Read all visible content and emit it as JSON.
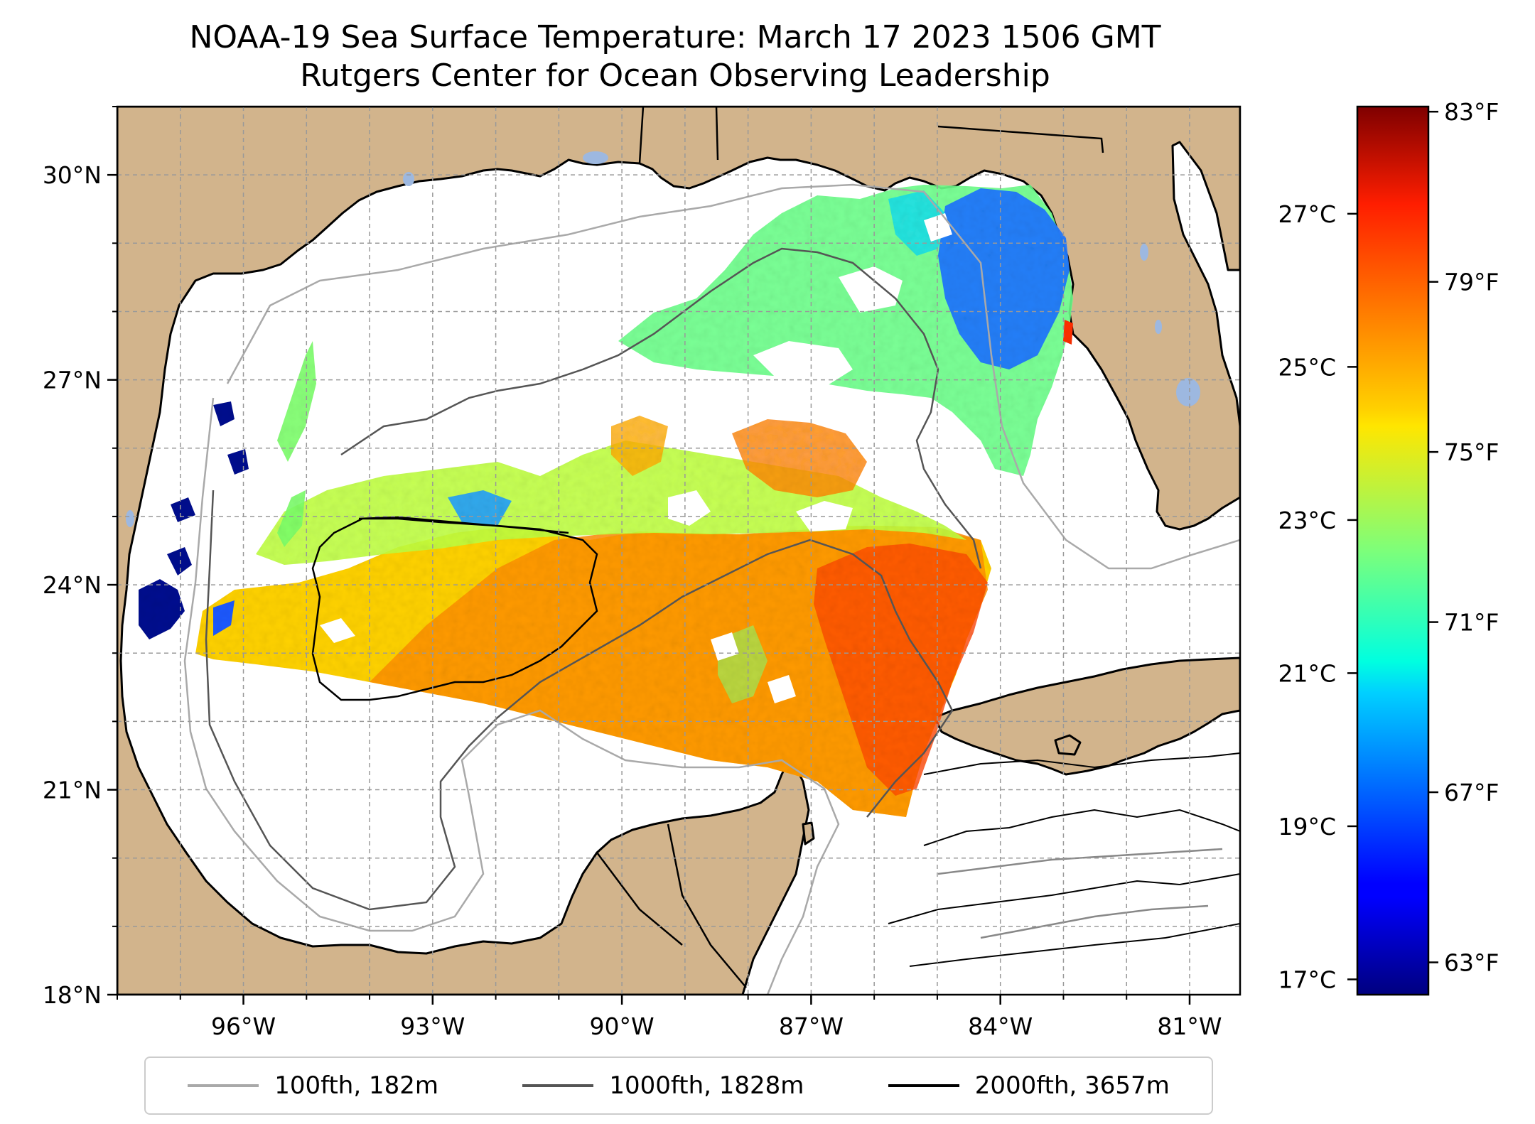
{
  "title_line1": "NOAA-19 Sea Surface Temperature: March 17 2023 1506 GMT",
  "title_line2": "Rutgers Center for Ocean Observing Leadership",
  "map": {
    "lon_range": [
      -98,
      -80.2
    ],
    "lat_range": [
      18,
      31
    ],
    "lon_ticks": [
      {
        "value": -96,
        "label": "96°W"
      },
      {
        "value": -93,
        "label": "93°W"
      },
      {
        "value": -90,
        "label": "90°W"
      },
      {
        "value": -87,
        "label": "87°W"
      },
      {
        "value": -84,
        "label": "84°W"
      },
      {
        "value": -81,
        "label": "81°W"
      }
    ],
    "lat_ticks": [
      {
        "value": 18,
        "label": "18°N"
      },
      {
        "value": 21,
        "label": "21°N"
      },
      {
        "value": 24,
        "label": "24°N"
      },
      {
        "value": 27,
        "label": "27°N"
      },
      {
        "value": 30,
        "label": "30°N"
      }
    ],
    "gridlines": true,
    "colors": {
      "land": "#d2b48c",
      "ocean": "#ffffff",
      "lakes": "#9db8e0",
      "coastline": "#000000"
    }
  },
  "colorbar": {
    "colormap": "jet",
    "celsius_range": [
      16.8,
      28.4
    ],
    "celsius_ticks": [
      {
        "value": 17,
        "label": "17°C"
      },
      {
        "value": 19,
        "label": "19°C"
      },
      {
        "value": 21,
        "label": "21°C"
      },
      {
        "value": 23,
        "label": "23°C"
      },
      {
        "value": 25,
        "label": "25°C"
      },
      {
        "value": 27,
        "label": "27°C"
      }
    ],
    "fahrenheit_ticks": [
      {
        "value": 63,
        "label": "63°F"
      },
      {
        "value": 67,
        "label": "67°F"
      },
      {
        "value": 71,
        "label": "71°F"
      },
      {
        "value": 75,
        "label": "75°F"
      },
      {
        "value": 79,
        "label": "79°F"
      },
      {
        "value": 83,
        "label": "83°F"
      }
    ]
  },
  "legend": {
    "placement": "bottom-center",
    "items": [
      {
        "label": "100fth, 182m",
        "color": "#a9a9a9"
      },
      {
        "label": "1000fth, 1828m",
        "color": "#555555"
      },
      {
        "label": "2000fth, 3657m",
        "color": "#000000"
      }
    ]
  }
}
